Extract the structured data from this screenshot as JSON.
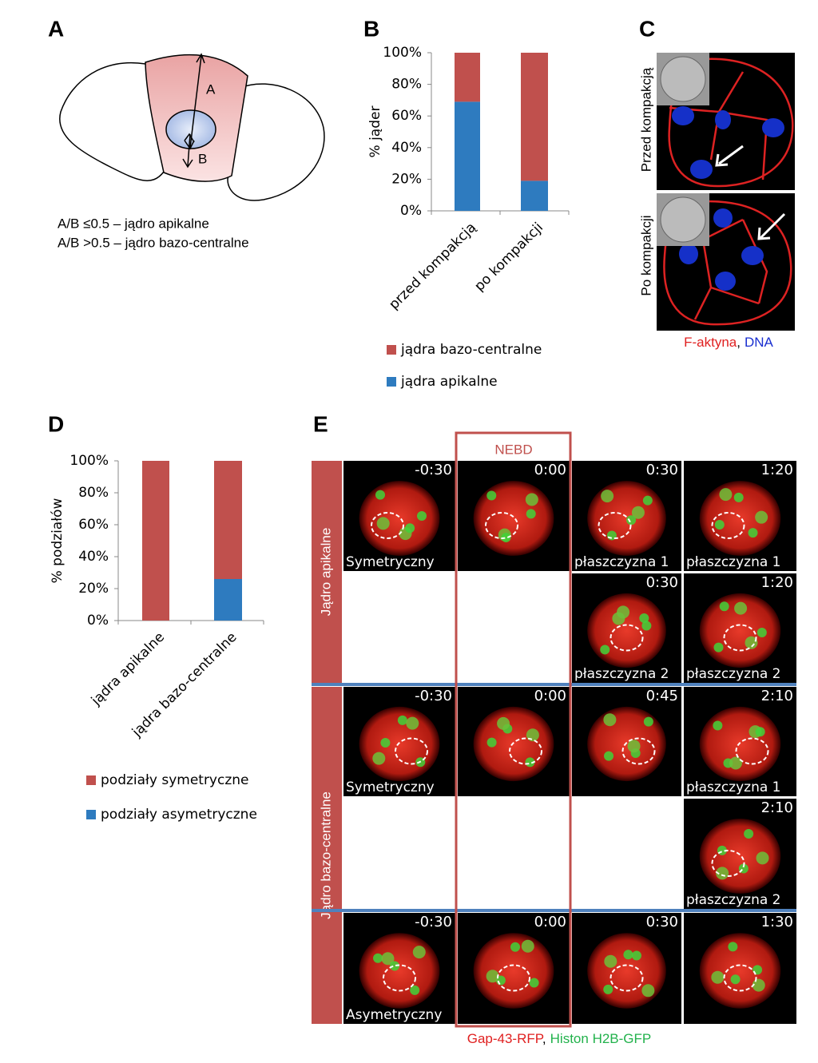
{
  "panel_letters": [
    "A",
    "B",
    "C",
    "D",
    "E"
  ],
  "panel_a": {
    "arrow_labels": [
      "A",
      "B"
    ],
    "legend": [
      "A/B ≤0.5 – jądro apikalne",
      "A/B >0.5 – jądro bazo-centralne"
    ]
  },
  "chart_data": [
    {
      "type": "bar",
      "stacked": true,
      "ylabel": "% jąder",
      "categories": [
        "przed kompakcją",
        "po kompakcji"
      ],
      "series": [
        {
          "name": "jądra bazo-centralne",
          "color": "#c0504d",
          "values": [
            31,
            81
          ]
        },
        {
          "name": "jądra apikalne",
          "color": "#2e7bbf",
          "values": [
            69,
            19
          ]
        }
      ],
      "ylim": [
        0,
        100
      ],
      "yticks": [
        {
          "value": 0,
          "label": "0%"
        },
        {
          "value": 20,
          "label": "20%"
        },
        {
          "value": 40,
          "label": "40%"
        },
        {
          "value": 60,
          "label": "60%"
        },
        {
          "value": 80,
          "label": "80%"
        },
        {
          "value": 100,
          "label": "100%"
        }
      ]
    },
    {
      "type": "bar",
      "stacked": true,
      "ylabel": "% podziałów",
      "categories": [
        "jądra apikalne",
        "jądra bazo-centralne"
      ],
      "series": [
        {
          "name": "podziały symetryczne",
          "color": "#c0504d",
          "values": [
            100,
            74
          ]
        },
        {
          "name": "podziały asymetryczne",
          "color": "#2e7bbf",
          "values": [
            0,
            26
          ]
        }
      ],
      "ylim": [
        0,
        100
      ],
      "yticks": [
        {
          "value": 0,
          "label": "0%"
        },
        {
          "value": 20,
          "label": "20%"
        },
        {
          "value": 40,
          "label": "40%"
        },
        {
          "value": 60,
          "label": "60%"
        },
        {
          "value": 80,
          "label": "80%"
        },
        {
          "value": 100,
          "label": "100%"
        }
      ]
    }
  ],
  "panel_c": {
    "rows": [
      "Przed kompakcją",
      "Po kompakcji"
    ],
    "caption": [
      "F-aktyna",
      ",",
      "DNA"
    ]
  },
  "panel_e": {
    "column_label": "NEBD",
    "row_groups": [
      "Jądro apikalne",
      "Jądro bazo-centralne"
    ],
    "cells": [
      [
        {
          "time": "-0:30",
          "label": "Symetryczny"
        },
        {
          "time": "0:00"
        },
        {
          "time": "0:30",
          "label": "płaszczyzna 1"
        },
        {
          "time": "1:20",
          "label": "płaszczyzna 1"
        }
      ],
      [
        null,
        null,
        {
          "time": "0:30",
          "label": "płaszczyzna 2"
        },
        {
          "time": "1:20",
          "label": "płaszczyzna 2"
        }
      ],
      [
        {
          "time": "-0:30",
          "label": "Symetryczny"
        },
        {
          "time": "0:00"
        },
        {
          "time": "0:45"
        },
        {
          "time": "2:10",
          "label": "płaszczyzna 1"
        }
      ],
      [
        null,
        null,
        null,
        {
          "time": "2:10",
          "label": "płaszczyzna 2"
        }
      ],
      [
        {
          "time": "-0:30",
          "label": "Asymetryczny"
        },
        {
          "time": "0:00"
        },
        {
          "time": "0:30"
        },
        {
          "time": "1:30"
        }
      ]
    ],
    "caption": [
      "Gap-43-RFP",
      ",",
      "Histon H2B-GFP"
    ]
  }
}
